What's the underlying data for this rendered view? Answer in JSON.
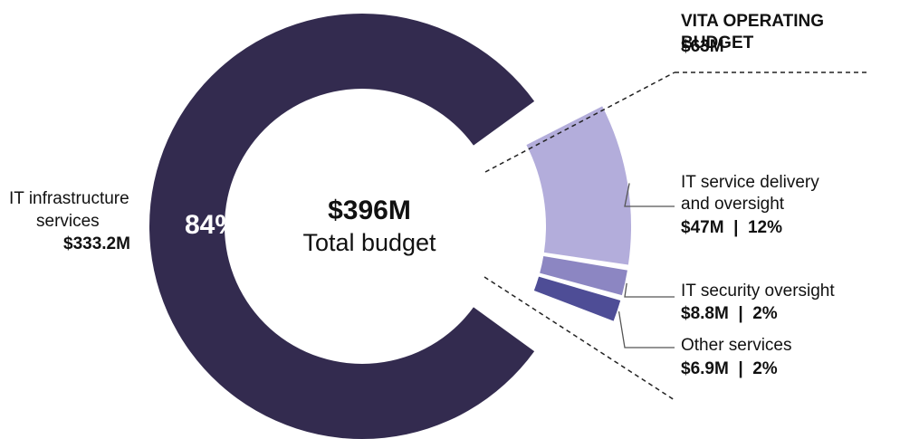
{
  "chart_data": {
    "type": "pie",
    "variant": "donut with exploded sub-breakdown",
    "total": {
      "value": "$396M",
      "label": "Total budget"
    },
    "slices": [
      {
        "name": "IT infrastructure services",
        "label_line1": "IT infrastructure",
        "label_line2": "services",
        "value": 333.2,
        "value_text": "$333.2M",
        "percent": 84,
        "percent_text": "84%",
        "color": "#332b4f"
      }
    ],
    "breakdown": {
      "title": "VITA OPERATING BUDGET",
      "value": 63,
      "value_text": "$63M",
      "items": [
        {
          "name": "IT service delivery and oversight",
          "label_line1": "IT service delivery",
          "label_line2": "and oversight",
          "value": 47,
          "percent": 12,
          "value_text": "$47M  |  12%",
          "color": "#b3addb"
        },
        {
          "name": "IT security oversight",
          "label_line1": "IT security oversight",
          "label_line2": "",
          "value": 8.8,
          "percent": 2,
          "value_text": "$8.8M  |  2%",
          "color": "#8c86c2"
        },
        {
          "name": "Other services",
          "label_line1": "Other services",
          "label_line2": "",
          "value": 6.9,
          "percent": 2,
          "value_text": "$6.9M  |  2%",
          "color": "#4e4d96"
        }
      ]
    }
  }
}
